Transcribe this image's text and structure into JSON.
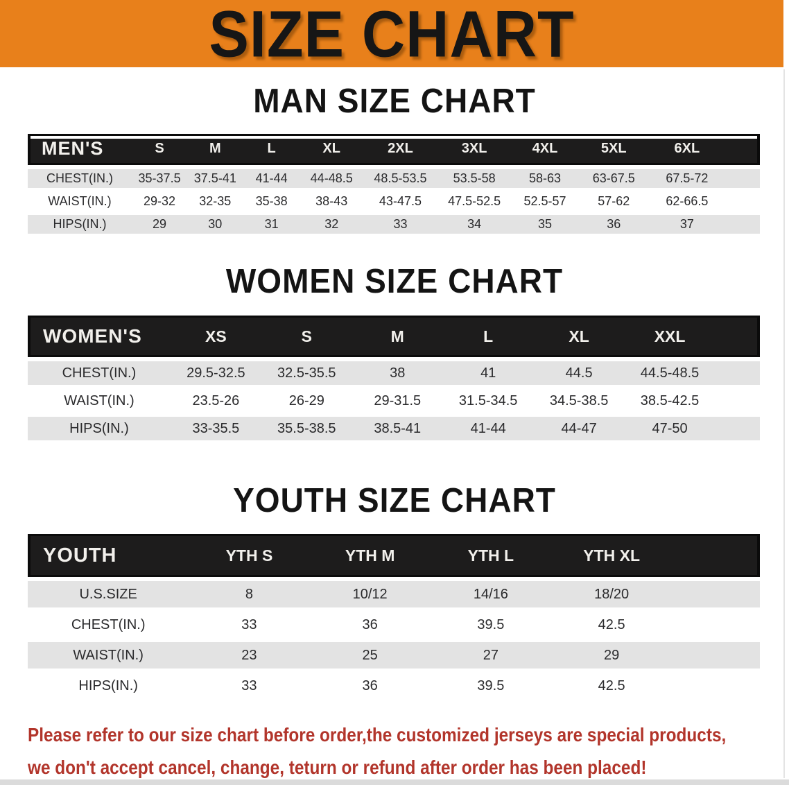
{
  "banner": {
    "title": "SIZE CHART"
  },
  "headings": {
    "men": "MAN SIZE CHART",
    "women": "WOMEN SIZE CHART",
    "youth": "YOUTH SIZE CHART"
  },
  "tables": {
    "men": {
      "corner_label": "MEN'S",
      "columns": [
        "S",
        "M",
        "L",
        "XL",
        "2XL",
        "3XL",
        "4XL",
        "5XL",
        "6XL"
      ],
      "rows": [
        {
          "label": "CHEST(IN.)",
          "values": [
            "35-37.5",
            "37.5-41",
            "41-44",
            "44-48.5",
            "48.5-53.5",
            "53.5-58",
            "58-63",
            "63-67.5",
            "67.5-72"
          ]
        },
        {
          "label": "WAIST(IN.)",
          "values": [
            "29-32",
            "32-35",
            "35-38",
            "38-43",
            "43-47.5",
            "47.5-52.5",
            "52.5-57",
            "57-62",
            "62-66.5"
          ]
        },
        {
          "label": "HIPS(IN.)",
          "values": [
            "29",
            "30",
            "31",
            "32",
            "33",
            "34",
            "35",
            "36",
            "37"
          ]
        }
      ]
    },
    "women": {
      "corner_label": "WOMEN'S",
      "columns": [
        "XS",
        "S",
        "M",
        "L",
        "XL",
        "XXL"
      ],
      "rows": [
        {
          "label": "CHEST(IN.)",
          "values": [
            "29.5-32.5",
            "32.5-35.5",
            "38",
            "41",
            "44.5",
            "44.5-48.5"
          ]
        },
        {
          "label": "WAIST(IN.)",
          "values": [
            "23.5-26",
            "26-29",
            "29-31.5",
            "31.5-34.5",
            "34.5-38.5",
            "38.5-42.5"
          ]
        },
        {
          "label": "HIPS(IN.)",
          "values": [
            "33-35.5",
            "35.5-38.5",
            "38.5-41",
            "41-44",
            "44-47",
            "47-50"
          ]
        }
      ]
    },
    "youth": {
      "corner_label": "YOUTH",
      "columns": [
        "YTH S",
        "YTH M",
        "YTH L",
        "YTH XL"
      ],
      "rows": [
        {
          "label": "U.S.SIZE",
          "values": [
            "8",
            "10/12",
            "14/16",
            "18/20"
          ]
        },
        {
          "label": "CHEST(IN.)",
          "values": [
            "33",
            "36",
            "39.5",
            "42.5"
          ]
        },
        {
          "label": "WAIST(IN.)",
          "values": [
            "23",
            "25",
            "27",
            "29"
          ]
        },
        {
          "label": "HIPS(IN.)",
          "values": [
            "33",
            "36",
            "39.5",
            "42.5"
          ]
        }
      ]
    }
  },
  "footer_note": {
    "line1": "Please refer to our size chart before order,the customized jerseys are special products,",
    "line2": "we don't accept cancel, change, teturn or refund after order has been placed!"
  },
  "colors": {
    "banner_bg": "#E8801B",
    "header_bar": "#1D1C1C",
    "row_stripe": "#E3E3E3",
    "note_red": "#B2352B"
  }
}
